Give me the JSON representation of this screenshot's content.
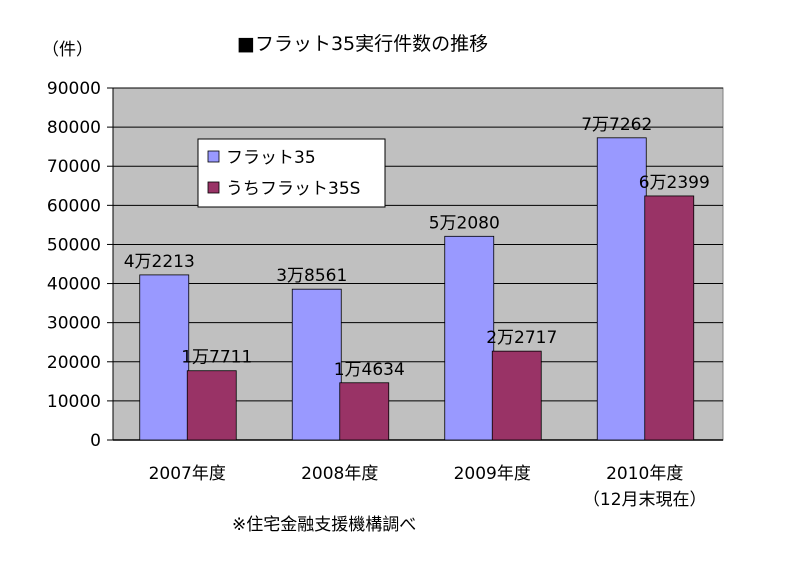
{
  "chart_data": {
    "type": "bar",
    "title": "■フラット35実行件数の推移",
    "ylabel": "（件）",
    "ylim": [
      0,
      90000
    ],
    "yticks": [
      0,
      10000,
      20000,
      30000,
      40000,
      50000,
      60000,
      70000,
      80000,
      90000
    ],
    "grid": true,
    "legend_position": "upper-left-inside",
    "categories": [
      "2007年度",
      "2008年度",
      "2009年度",
      "2010年度"
    ],
    "category_sublabels": [
      "",
      "",
      "",
      "（12月末現在）"
    ],
    "series": [
      {
        "name": "フラット35",
        "color": "#9999ff",
        "values": [
          42213,
          38561,
          52080,
          77262
        ],
        "labels": [
          "4万2213",
          "3万8561",
          "5万2080",
          "7万7262"
        ]
      },
      {
        "name": "うちフラット35S",
        "color": "#993366",
        "values": [
          17711,
          14634,
          22717,
          62399
        ],
        "labels": [
          "1万7711",
          "1万4634",
          "2万2717",
          "6万2399"
        ]
      }
    ],
    "plot_background": "#c0c0c0",
    "footnote": "※住宅金融支援機構調べ"
  }
}
